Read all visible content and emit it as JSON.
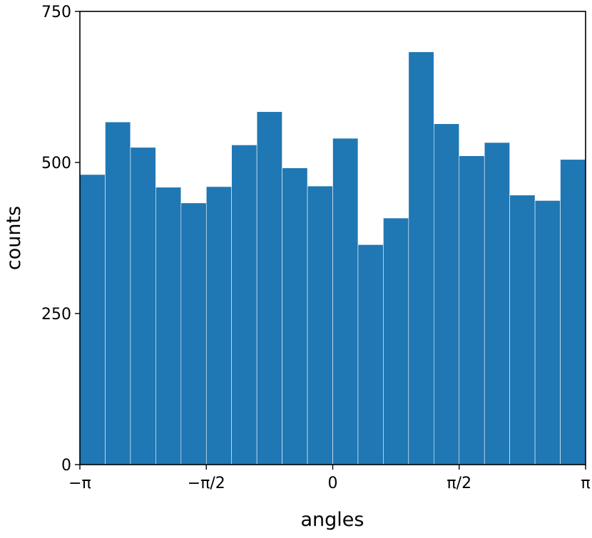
{
  "chart_data": {
    "type": "histogram",
    "xlabel": "angles",
    "ylabel": "counts",
    "bins": [
      -3.1416,
      -2.8274,
      -2.5133,
      -2.1991,
      -1.885,
      -1.5708,
      -1.2566,
      -0.9425,
      -0.6283,
      -0.3142,
      0,
      0.3142,
      0.6283,
      0.9425,
      1.2566,
      1.5708,
      1.885,
      2.1991,
      2.5133,
      2.8274,
      3.1416
    ],
    "values": [
      480,
      567,
      525,
      459,
      433,
      460,
      529,
      584,
      491,
      461,
      540,
      364,
      408,
      683,
      564,
      511,
      533,
      446,
      437,
      505
    ],
    "color": "#1f77b4",
    "xlim": [
      -3.1416,
      3.1416
    ],
    "xticks": [
      {
        "value": -3.1416,
        "label": "−π"
      },
      {
        "value": -1.5708,
        "label": "−π/2"
      },
      0,
      {
        "value": 1.5708,
        "label": "π/2"
      },
      {
        "value": 3.1416,
        "label": "π"
      }
    ],
    "ylim": [
      0,
      750
    ],
    "yticks": [
      0,
      250,
      500,
      750
    ]
  }
}
